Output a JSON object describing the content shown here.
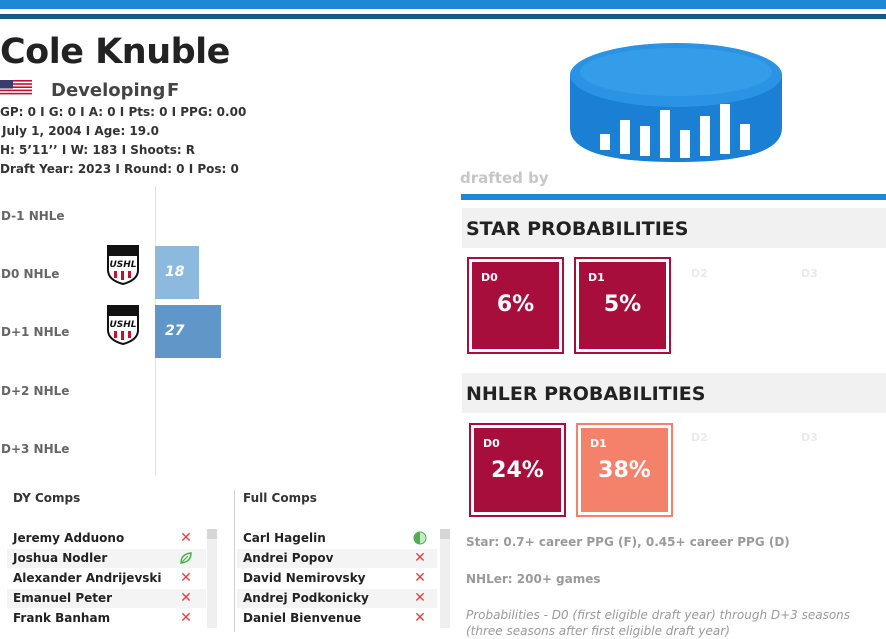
{
  "player": {
    "name": "Cole Knuble",
    "status": "Developing",
    "position": "F",
    "stats_line1": "GP: 0 I G: 0 I A: 0 I Pts: 0 I PPG: 0.00",
    "stats_line2": "July 1, 2004 I Age: 19.0",
    "stats_line3": "H: 5’11’’ I W: 183 I Shoots: R",
    "stats_line4": "Draft Year: 2023 I Round: 0 I Pos: 0"
  },
  "draft": {
    "label": "drafted by"
  },
  "seasons": [
    {
      "label": "D-1 NHLe",
      "value": null,
      "league": null
    },
    {
      "label": "D0 NHLe",
      "value": "18",
      "league": "USHL",
      "fill": 0.22,
      "color": "#8cb9de"
    },
    {
      "label": "D+1 NHLe",
      "value": "27",
      "league": "USHL",
      "fill": 0.33,
      "color": "#5f97c8"
    },
    {
      "label": "D+2 NHLe",
      "value": null,
      "league": null
    },
    {
      "label": "D+3 NHLe",
      "value": null,
      "league": null
    }
  ],
  "star": {
    "title": "STAR PROBABILITIES",
    "boxes": [
      {
        "season": "D0",
        "value": "6%",
        "color": "#a80e3c"
      },
      {
        "season": "D1",
        "value": "5%",
        "color": "#a80e3c"
      }
    ],
    "ghosts": [
      "D2",
      "D3"
    ]
  },
  "nhler": {
    "title": "NHLER PROBABILITIES",
    "boxes": [
      {
        "season": "D0",
        "value": "24%",
        "color": "#a80e3c"
      },
      {
        "season": "D1",
        "value": "38%",
        "color": "#f4826b"
      }
    ],
    "ghosts": [
      "D2",
      "D3"
    ]
  },
  "notes": {
    "star_def": "Star: 0.7+ career PPG (F), 0.45+ career PPG (D)",
    "nhler_def": "NHLer: 200+ games",
    "prob_def": "Probabilities - D0 (first eligible draft year) through D+3 seasons (three seasons after first eligible draft year)"
  },
  "dy_comps": {
    "title": "DY Comps",
    "rows": [
      {
        "name": "Jeremy Adduono",
        "icon": "x-icon"
      },
      {
        "name": "Joshua Nodler",
        "icon": "leaf-icon"
      },
      {
        "name": "Alexander Andrijevski",
        "icon": "x-icon"
      },
      {
        "name": "Emanuel Peter",
        "icon": "x-icon"
      },
      {
        "name": "Frank Banham",
        "icon": "x-icon"
      }
    ]
  },
  "full_comps": {
    "title": "Full Comps",
    "rows": [
      {
        "name": "Carl Hagelin",
        "icon": "half-circle-icon"
      },
      {
        "name": "Andrei Popov",
        "icon": "x-icon"
      },
      {
        "name": "David Nemirovsky",
        "icon": "x-icon"
      },
      {
        "name": "Andrej Podkonicky",
        "icon": "x-icon"
      },
      {
        "name": "Daniel Bienvenue",
        "icon": "x-icon"
      }
    ]
  },
  "logo_text": "USHL"
}
